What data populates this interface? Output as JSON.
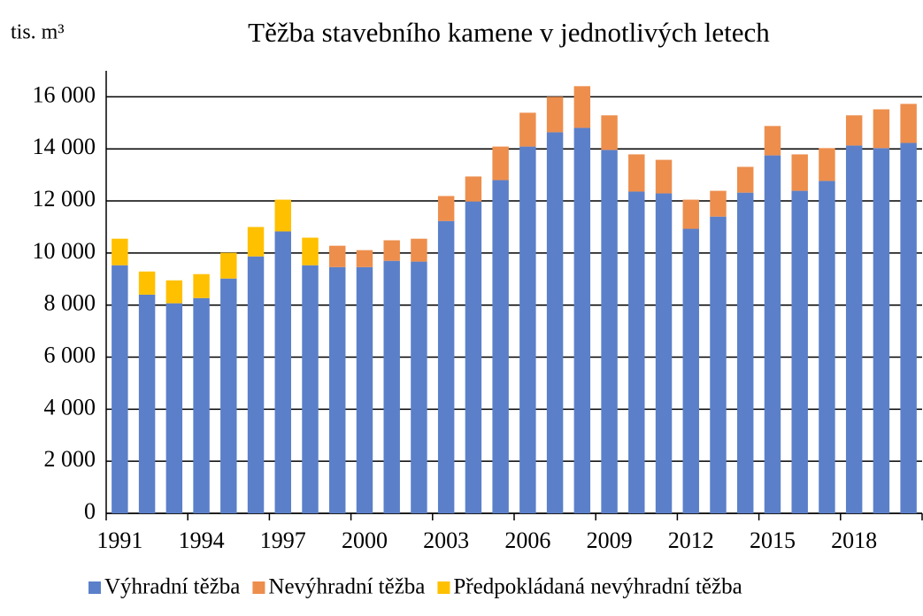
{
  "chart_data": {
    "type": "stacked_bar",
    "title": "Těžba stavebního kamene v jednotlivých letech",
    "y_axis_label": "tis. m³",
    "categories": [
      "1991",
      null,
      null,
      "1994",
      null,
      null,
      "1997",
      null,
      null,
      "2000",
      null,
      null,
      "2003",
      null,
      null,
      "2006",
      null,
      null,
      "2009",
      null,
      null,
      "2012",
      null,
      null,
      "2015",
      null,
      null,
      "2018",
      null,
      null
    ],
    "series": [
      {
        "name": "Výhradní těžba",
        "color": "#5b80c9",
        "values": [
          9530,
          8400,
          8070,
          8270,
          9020,
          9870,
          10830,
          9530,
          9460,
          9460,
          9700,
          9670,
          11230,
          11980,
          12800,
          14090,
          14640,
          14810,
          13960,
          12360,
          12290,
          10930,
          11400,
          12320,
          13750,
          12390,
          12770,
          14130,
          14030,
          14230
        ]
      },
      {
        "name": "Nevýhradní těžba",
        "color": "#ed8e4d",
        "values": [
          0,
          0,
          0,
          0,
          0,
          0,
          0,
          0,
          820,
          650,
          790,
          880,
          960,
          960,
          1290,
          1300,
          1360,
          1600,
          1330,
          1430,
          1290,
          1120,
          990,
          990,
          1130,
          1400,
          1260,
          1160,
          1490,
          1500
        ]
      },
      {
        "name": "Předpokládaná nevýhradní těžba",
        "color": "#ffc000",
        "values": [
          1020,
          890,
          880,
          920,
          990,
          1130,
          1220,
          1060,
          0,
          0,
          0,
          0,
          0,
          0,
          0,
          0,
          0,
          0,
          0,
          0,
          0,
          0,
          0,
          0,
          0,
          0,
          0,
          0,
          0,
          0
        ]
      }
    ],
    "ylim": [
      0,
      17000
    ],
    "yticks": [
      0,
      {
        "value": 2000,
        "label": "2 000"
      },
      {
        "value": 4000,
        "label": "4 000"
      },
      {
        "value": 6000,
        "label": "6 000"
      },
      {
        "value": 8000,
        "label": "8 000"
      },
      {
        "value": 10000,
        "label": "10 000"
      },
      {
        "value": 12000,
        "label": "12 000"
      },
      {
        "value": 14000,
        "label": "14 000"
      },
      {
        "value": 16000,
        "label": "16 000"
      }
    ],
    "grid": true,
    "legend": "bottom"
  }
}
